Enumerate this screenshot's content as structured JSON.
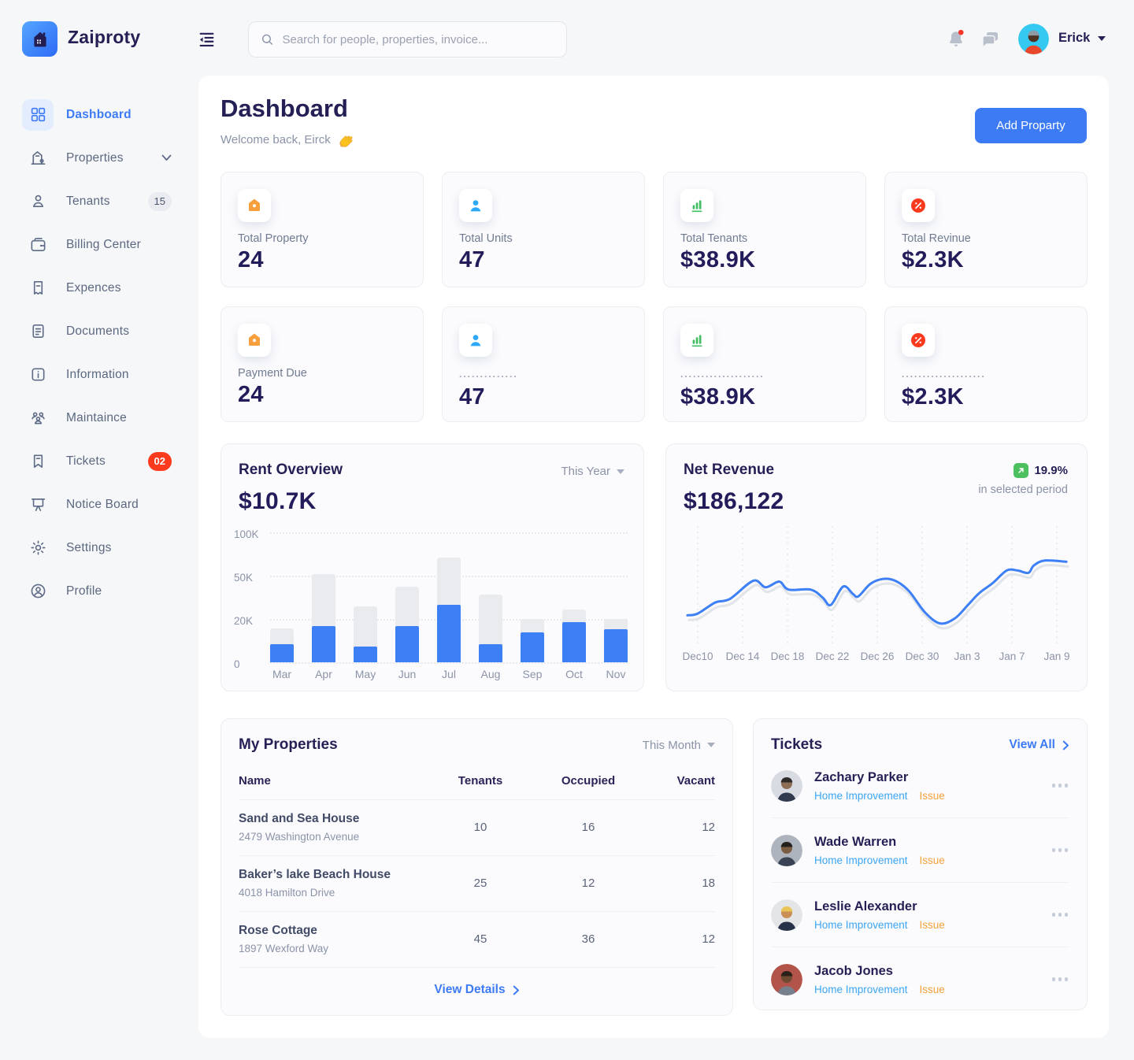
{
  "header": {
    "brand": "Zaiproty",
    "search_placeholder": "Search for people, properties, invoice...",
    "user_name": "Erick"
  },
  "sidebar": {
    "items": [
      {
        "label": "Dashboard",
        "icon": "grid",
        "active": true
      },
      {
        "label": "Properties",
        "icon": "building",
        "chevron": true
      },
      {
        "label": "Tenants",
        "icon": "person",
        "badge": "15",
        "badge_style": "gray"
      },
      {
        "label": "Billing Center",
        "icon": "wallet"
      },
      {
        "label": "Expences",
        "icon": "receipt"
      },
      {
        "label": "Documents",
        "icon": "document"
      },
      {
        "label": "Information",
        "icon": "info"
      },
      {
        "label": "Maintaince",
        "icon": "people"
      },
      {
        "label": "Tickets",
        "icon": "bookmark",
        "badge": "02",
        "badge_style": "red"
      },
      {
        "label": "Notice Board",
        "icon": "board"
      },
      {
        "label": "Settings",
        "icon": "gear"
      },
      {
        "label": "Profile",
        "icon": "profile"
      }
    ]
  },
  "page": {
    "title": "Dashboard",
    "welcome": "Welcome back, Eirck",
    "add_button": "Add Proparty"
  },
  "stats": [
    {
      "label": "Total Property",
      "value": "24",
      "icon": "home"
    },
    {
      "label": "Total Units",
      "value": "47",
      "icon": "user"
    },
    {
      "label": "Total Tenants",
      "value": "$38.9K",
      "icon": "chart"
    },
    {
      "label": "Total Revinue",
      "value": "$2.3K",
      "icon": "percent"
    },
    {
      "label": "Payment Due",
      "value": "24",
      "icon": "home"
    },
    {
      "label": "..............",
      "value": "47",
      "icon": "user",
      "dotted": true
    },
    {
      "label": "....................",
      "value": "$38.9K",
      "icon": "chart",
      "dotted": true
    },
    {
      "label": "....................",
      "value": "$2.3K",
      "icon": "percent",
      "dotted": true
    }
  ],
  "chart_data": [
    {
      "type": "bar",
      "title": "Rent Overview",
      "total_label": "$10.7K",
      "period": "This Year",
      "categories": [
        "Mar",
        "Apr",
        "May",
        "Jun",
        "Jul",
        "Aug",
        "Sep",
        "Oct",
        "Nov"
      ],
      "series": [
        {
          "name": "total",
          "values_k": [
            15.6,
            52,
            28.6,
            42.3,
            71.3,
            37,
            20,
            26.8,
            20
          ]
        },
        {
          "name": "collected",
          "values_k": [
            8.3,
            16.8,
            7.3,
            16.8,
            30,
            8.3,
            13.8,
            18.5,
            15.3
          ]
        }
      ],
      "y_ticks": [
        {
          "label": "0",
          "value": 0
        },
        {
          "label": "20K",
          "value": 20
        },
        {
          "label": "50K",
          "value": 50
        },
        {
          "label": "100K",
          "value": 100
        }
      ],
      "grid": "dotted-horizontal",
      "legend": false
    },
    {
      "type": "line",
      "title": "Net Revenue",
      "total_label": "$186,122",
      "growth": "19.9%",
      "growth_note": "in selected period",
      "x_ticks": [
        "Dec10",
        "Dec 14",
        "Dec 18",
        "Dec 22",
        "Dec 26",
        "Dec 30",
        "Jan 3",
        "Jan 7",
        "Jan 9"
      ],
      "points": [
        {
          "x_pct": 1.0,
          "level_pct": 24.5
        },
        {
          "x_pct": 3.6,
          "level_pct": 25.9
        },
        {
          "x_pct": 8.2,
          "level_pct": 35.3
        },
        {
          "x_pct": 12.0,
          "level_pct": 38.4
        },
        {
          "x_pct": 18.0,
          "level_pct": 53.7
        },
        {
          "x_pct": 21.2,
          "level_pct": 48.2
        },
        {
          "x_pct": 24.7,
          "level_pct": 53.0
        },
        {
          "x_pct": 27.1,
          "level_pct": 46.2
        },
        {
          "x_pct": 32.8,
          "level_pct": 46.2
        },
        {
          "x_pct": 35.9,
          "level_pct": 39.5
        },
        {
          "x_pct": 38.0,
          "level_pct": 33.2
        },
        {
          "x_pct": 41.2,
          "level_pct": 48.8
        },
        {
          "x_pct": 43.7,
          "level_pct": 42.6
        },
        {
          "x_pct": 45.1,
          "level_pct": 40.5
        },
        {
          "x_pct": 48.2,
          "level_pct": 51.0
        },
        {
          "x_pct": 51.4,
          "level_pct": 55.2
        },
        {
          "x_pct": 54.6,
          "level_pct": 53.7
        },
        {
          "x_pct": 58.1,
          "level_pct": 45.3
        },
        {
          "x_pct": 62.3,
          "level_pct": 27.0
        },
        {
          "x_pct": 66.2,
          "level_pct": 17.6
        },
        {
          "x_pct": 70.0,
          "level_pct": 21.8
        },
        {
          "x_pct": 73.5,
          "level_pct": 33.6
        },
        {
          "x_pct": 76.3,
          "level_pct": 43.2
        },
        {
          "x_pct": 79.9,
          "level_pct": 52.0
        },
        {
          "x_pct": 83.4,
          "level_pct": 62.4
        },
        {
          "x_pct": 86.2,
          "level_pct": 62.4
        },
        {
          "x_pct": 89.0,
          "level_pct": 60.4
        },
        {
          "x_pct": 90.4,
          "level_pct": 66.6
        },
        {
          "x_pct": 93.2,
          "level_pct": 70.8
        },
        {
          "x_pct": 98.8,
          "level_pct": 69.8
        }
      ],
      "grid": "dashed-vertical"
    }
  ],
  "properties": {
    "title": "My Properties",
    "period": "This Month",
    "columns": [
      "Name",
      "Tenants",
      "Occupied",
      "Vacant"
    ],
    "rows": [
      {
        "name": "Sand and Sea House",
        "address": "2479 Washington Avenue",
        "tenants": "10",
        "occupied": "16",
        "vacant": "12"
      },
      {
        "name": "Baker’s lake Beach House",
        "address": "4018 Hamilton Drive",
        "tenants": "25",
        "occupied": "12",
        "vacant": "18"
      },
      {
        "name": "Rose Cottage",
        "address": "1897 Wexford Way",
        "tenants": "45",
        "occupied": "36",
        "vacant": "12"
      }
    ],
    "footer_link": "View Details"
  },
  "tickets": {
    "title": "Tickets",
    "view_all": "View All",
    "items": [
      {
        "name": "Zachary Parker",
        "category": "Home Improvement",
        "tag": "Issue",
        "avatar": "zachary"
      },
      {
        "name": "Wade Warren",
        "category": "Home Improvement",
        "tag": "Issue",
        "avatar": "wade"
      },
      {
        "name": "Leslie Alexander",
        "category": "Home Improvement",
        "tag": "Issue",
        "avatar": "leslie"
      },
      {
        "name": "Jacob Jones",
        "category": "Home Improvement",
        "tag": "Issue",
        "avatar": "jacob"
      }
    ]
  }
}
